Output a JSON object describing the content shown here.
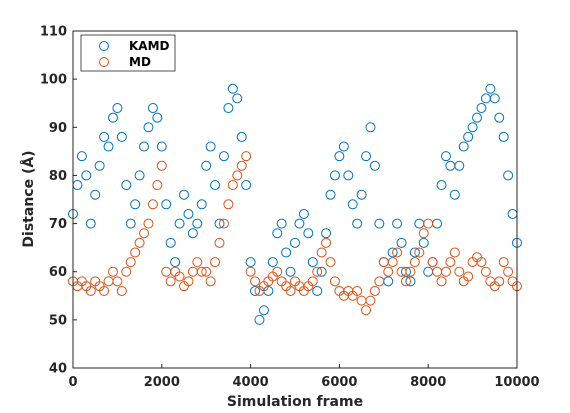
{
  "chart_data": {
    "type": "scatter",
    "title": "",
    "xlabel": "Simulation frame",
    "ylabel": "Distance (Å)",
    "xlim": [
      0,
      10000
    ],
    "ylim": [
      40,
      110
    ],
    "xticks": [
      0,
      2000,
      4000,
      6000,
      8000,
      10000
    ],
    "yticks": [
      40,
      50,
      60,
      70,
      80,
      90,
      100,
      110
    ],
    "grid": false,
    "legend": "top-left",
    "marker": "open-circle",
    "series": [
      {
        "name": "KAMD",
        "color": "#0072BD",
        "x": [
          0,
          100,
          200,
          300,
          400,
          500,
          600,
          700,
          800,
          900,
          1000,
          1100,
          1200,
          1300,
          1400,
          1500,
          1600,
          1700,
          1800,
          1900,
          2000,
          2100,
          2200,
          2300,
          2400,
          2500,
          2600,
          2700,
          2800,
          2900,
          3000,
          3100,
          3200,
          3300,
          3400,
          3500,
          3600,
          3700,
          3800,
          3900,
          4000,
          4100,
          4200,
          4300,
          4400,
          4500,
          4600,
          4700,
          4800,
          4900,
          5000,
          5100,
          5200,
          5300,
          5400,
          5500,
          5600,
          5700,
          5800,
          5900,
          6000,
          6100,
          6200,
          6300,
          6400,
          6500,
          6600,
          6700,
          6800,
          6900,
          7000,
          7100,
          7200,
          7300,
          7400,
          7500,
          7600,
          7700,
          7800,
          7900,
          8000,
          8100,
          8200,
          8300,
          8400,
          8500,
          8600,
          8700,
          8800,
          8900,
          9000,
          9100,
          9200,
          9300,
          9400,
          9500,
          9600,
          9700,
          9800,
          9900,
          10000
        ],
        "y": [
          72,
          78,
          84,
          80,
          70,
          76,
          82,
          88,
          86,
          92,
          94,
          88,
          78,
          70,
          74,
          80,
          86,
          90,
          94,
          92,
          86,
          74,
          66,
          62,
          70,
          76,
          72,
          68,
          70,
          74,
          82,
          86,
          78,
          70,
          84,
          94,
          98,
          96,
          88,
          78,
          62,
          56,
          50,
          52,
          56,
          62,
          68,
          70,
          64,
          60,
          66,
          70,
          72,
          68,
          62,
          56,
          60,
          68,
          76,
          80,
          84,
          86,
          80,
          74,
          70,
          76,
          84,
          90,
          82,
          70,
          62,
          58,
          64,
          70,
          66,
          60,
          58,
          64,
          70,
          66,
          60,
          62,
          70,
          78,
          84,
          82,
          76,
          82,
          86,
          88,
          90,
          92,
          94,
          96,
          98,
          96,
          92,
          88,
          80,
          72,
          66
        ]
      },
      {
        "name": "MD",
        "color": "#D95319",
        "x": [
          0,
          100,
          200,
          300,
          400,
          500,
          600,
          700,
          800,
          900,
          1000,
          1100,
          1200,
          1300,
          1400,
          1500,
          1600,
          1700,
          1800,
          1900,
          2000,
          2100,
          2200,
          2300,
          2400,
          2500,
          2600,
          2700,
          2800,
          2900,
          3000,
          3100,
          3200,
          3300,
          3400,
          3500,
          3600,
          3700,
          3800,
          3900,
          4000,
          4100,
          4200,
          4300,
          4400,
          4500,
          4600,
          4700,
          4800,
          4900,
          5000,
          5100,
          5200,
          5300,
          5400,
          5500,
          5600,
          5700,
          5800,
          5900,
          6000,
          6100,
          6200,
          6300,
          6400,
          6500,
          6600,
          6700,
          6800,
          6900,
          7000,
          7100,
          7200,
          7300,
          7400,
          7500,
          7600,
          7700,
          7800,
          7900,
          8000,
          8100,
          8200,
          8300,
          8400,
          8500,
          8600,
          8700,
          8800,
          8900,
          9000,
          9100,
          9200,
          9300,
          9400,
          9500,
          9600,
          9700,
          9800,
          9900,
          10000
        ],
        "y": [
          58,
          57,
          58,
          57,
          56,
          58,
          57,
          56,
          58,
          60,
          58,
          56,
          60,
          62,
          64,
          66,
          68,
          70,
          74,
          78,
          82,
          60,
          58,
          60,
          59,
          57,
          58,
          60,
          62,
          60,
          60,
          58,
          62,
          66,
          70,
          74,
          78,
          80,
          82,
          84,
          60,
          58,
          56,
          57,
          58,
          59,
          60,
          58,
          57,
          56,
          58,
          57,
          56,
          57,
          58,
          60,
          64,
          66,
          62,
          58,
          56,
          55,
          56,
          55,
          56,
          54,
          52,
          54,
          56,
          58,
          62,
          60,
          62,
          64,
          60,
          58,
          60,
          62,
          64,
          68,
          70,
          62,
          60,
          58,
          60,
          62,
          64,
          60,
          58,
          59,
          62,
          63,
          62,
          60,
          58,
          57,
          58,
          62,
          60,
          58,
          57
        ]
      }
    ]
  }
}
